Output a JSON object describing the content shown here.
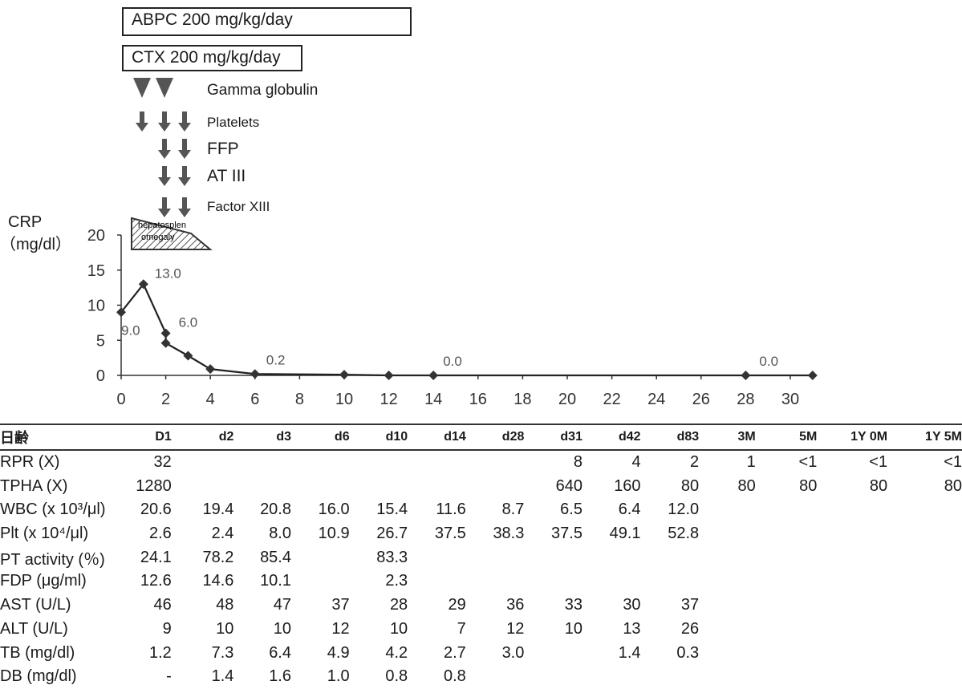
{
  "treatments": {
    "abpc": "ABPC 200 mg/kg/day",
    "ctx": "CTX 200 mg/kg/day",
    "gamma_globulin": "Gamma globulin",
    "platelets": "Platelets",
    "ffp": "FFP",
    "at3": "AT III",
    "factor13": "Factor XIII",
    "hepato_line1": "hepatosplen",
    "hepato_line2": "omegaly"
  },
  "chart_data": {
    "type": "line",
    "ylabel_line1": "CRP",
    "ylabel_line2": "（mg/dl）",
    "xlim": [
      0,
      32
    ],
    "ylim": [
      0,
      20
    ],
    "x_ticks": [
      0,
      2,
      4,
      6,
      8,
      10,
      12,
      14,
      16,
      18,
      20,
      22,
      24,
      26,
      28,
      30
    ],
    "y_ticks": [
      0,
      5,
      10,
      15,
      20
    ],
    "series": [
      {
        "x": [
          0,
          1,
          2,
          2,
          3,
          4,
          6,
          10,
          12,
          14,
          28,
          31
        ],
        "values": [
          9.0,
          13.0,
          6.0,
          4.6,
          2.8,
          0.9,
          0.2,
          0.1,
          0.0,
          0.0,
          0.0,
          0.0
        ]
      }
    ],
    "data_labels": [
      {
        "x": 0,
        "y": 9.0,
        "text": "9.0"
      },
      {
        "x": 1,
        "y": 13.0,
        "text": "13.0"
      },
      {
        "x": 2,
        "y": 6.0,
        "text": "6.0"
      },
      {
        "x": 6,
        "y": 0.2,
        "text": "0.2"
      },
      {
        "x": 14,
        "y": 0.0,
        "text": "0.0"
      },
      {
        "x": 28,
        "y": 0.0,
        "text": "0.0"
      }
    ]
  },
  "table": {
    "header_label": "日齢",
    "columns": [
      "D1",
      "d2",
      "d3",
      "d6",
      "d10",
      "d14",
      "d28",
      "d31",
      "d42",
      "d83",
      "3M",
      "5M",
      "1Y 0M",
      "1Y 5M"
    ],
    "rows": [
      {
        "label": "RPR (X)",
        "values": [
          "32",
          "",
          "",
          "",
          "",
          "",
          "",
          "8",
          "4",
          "2",
          "1",
          "<1",
          "<1",
          "<1"
        ]
      },
      {
        "label": "TPHA (X)",
        "values": [
          "1280",
          "",
          "",
          "",
          "",
          "",
          "",
          "640",
          "160",
          "80",
          "80",
          "80",
          "80",
          "80"
        ]
      },
      {
        "label": "WBC (x 10³/μl)",
        "values": [
          "20.6",
          "19.4",
          "20.8",
          "16.0",
          "15.4",
          "11.6",
          "8.7",
          "6.5",
          "6.4",
          "12.0",
          "",
          "",
          "",
          ""
        ]
      },
      {
        "label": "Plt (x 10⁴/μl)",
        "values": [
          "2.6",
          "2.4",
          "8.0",
          "10.9",
          "26.7",
          "37.5",
          "38.3",
          "37.5",
          "49.1",
          "52.8",
          "",
          "",
          "",
          ""
        ]
      },
      {
        "label": "PT activity (％)",
        "values": [
          "24.1",
          "78.2",
          "85.4",
          "",
          "83.3",
          "",
          "",
          "",
          "",
          "",
          "",
          "",
          "",
          ""
        ]
      },
      {
        "label": "FDP (μg/ml)",
        "values": [
          "12.6",
          "14.6",
          "10.1",
          "",
          "2.3",
          "",
          "",
          "",
          "",
          "",
          "",
          "",
          "",
          ""
        ]
      },
      {
        "label": "AST (U/L)",
        "values": [
          "46",
          "48",
          "47",
          "37",
          "28",
          "29",
          "36",
          "33",
          "30",
          "37",
          "",
          "",
          "",
          ""
        ]
      },
      {
        "label": "ALT (U/L)",
        "values": [
          "9",
          "10",
          "10",
          "12",
          "10",
          "7",
          "12",
          "10",
          "13",
          "26",
          "",
          "",
          "",
          ""
        ]
      },
      {
        "label": "TB (mg/dl)",
        "values": [
          "1.2",
          "7.3",
          "6.4",
          "4.9",
          "4.2",
          "2.7",
          "3.0",
          "",
          "1.4",
          "0.3",
          "",
          "",
          "",
          ""
        ]
      },
      {
        "label": "DB (mg/dl)",
        "values": [
          "-",
          "1.4",
          "1.6",
          "1.0",
          "0.8",
          "0.8",
          "",
          "",
          "",
          "",
          "",
          "",
          "",
          ""
        ]
      }
    ]
  }
}
